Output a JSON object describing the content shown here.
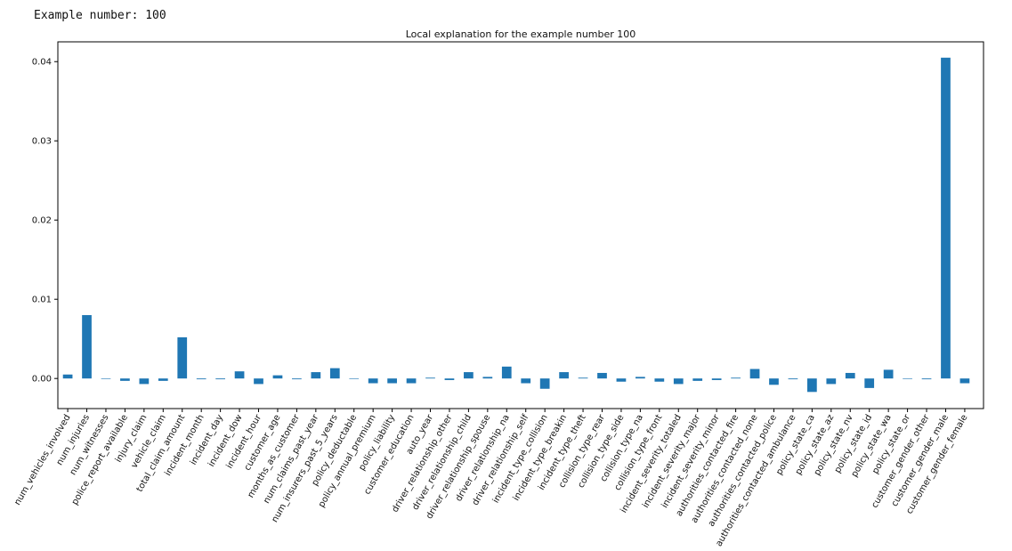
{
  "output": {
    "text": "Example number: 100"
  },
  "chart_data": {
    "type": "bar",
    "title": "Local explanation for the example number 100",
    "xlabel": "",
    "ylabel": "",
    "ylim": [
      -0.0038,
      0.0425
    ],
    "yticks": [
      0.0,
      0.01,
      0.02,
      0.03,
      0.04
    ],
    "ytick_labels": [
      "0.00",
      "0.01",
      "0.02",
      "0.03",
      "0.04"
    ],
    "grid": false,
    "bar_color": "#1f77b4",
    "categories": [
      "num_vehicles_involved",
      "num_injuries",
      "num_witnesses",
      "police_report_available",
      "injury_claim",
      "vehicle_claim",
      "total_claim_amount",
      "incident_month",
      "incident_day",
      "incident_dow",
      "incident_hour",
      "customer_age",
      "months_as_customer",
      "num_claims_past_year",
      "num_insurers_past_5_years",
      "policy_deductable",
      "policy_annual_premium",
      "policy_liability",
      "customer_education",
      "auto_year",
      "driver_relationship_other",
      "driver_relationship_child",
      "driver_relationship_spouse",
      "driver_relationship_na",
      "driver_relationship_self",
      "incident_type_collision",
      "incident_type_breakin",
      "incident_type_theft",
      "collision_type_rear",
      "collision_type_side",
      "collision_type_na",
      "collision_type_front",
      "incident_severity_totaled",
      "incident_severity_major",
      "incident_severity_minor",
      "authorities_contacted_fire",
      "authorities_contacted_none",
      "authorities_contacted_police",
      "authorities_contacted_ambulance",
      "policy_state_ca",
      "policy_state_az",
      "policy_state_nv",
      "policy_state_id",
      "policy_state_wa",
      "policy_state_or",
      "customer_gender_other",
      "customer_gender_male",
      "customer_gender_female"
    ],
    "values": [
      0.0005,
      0.008,
      0.0,
      -0.0003,
      -0.0007,
      -0.0003,
      0.0052,
      -0.0001,
      -0.0001,
      0.0009,
      -0.0007,
      0.0004,
      -0.0001,
      0.0008,
      0.0013,
      0.0,
      -0.0006,
      -0.0006,
      -0.0006,
      0.0001,
      -0.0002,
      0.0008,
      0.0002,
      0.0015,
      -0.0006,
      -0.0013,
      0.0008,
      0.0001,
      0.0007,
      -0.0004,
      0.0002,
      -0.0004,
      -0.0007,
      -0.0003,
      -0.0002,
      0.0001,
      0.0012,
      -0.0008,
      -0.0001,
      -0.0017,
      -0.0007,
      0.0007,
      -0.0012,
      0.0011,
      0.0,
      -0.0001,
      0.0405,
      -0.0006
    ]
  }
}
